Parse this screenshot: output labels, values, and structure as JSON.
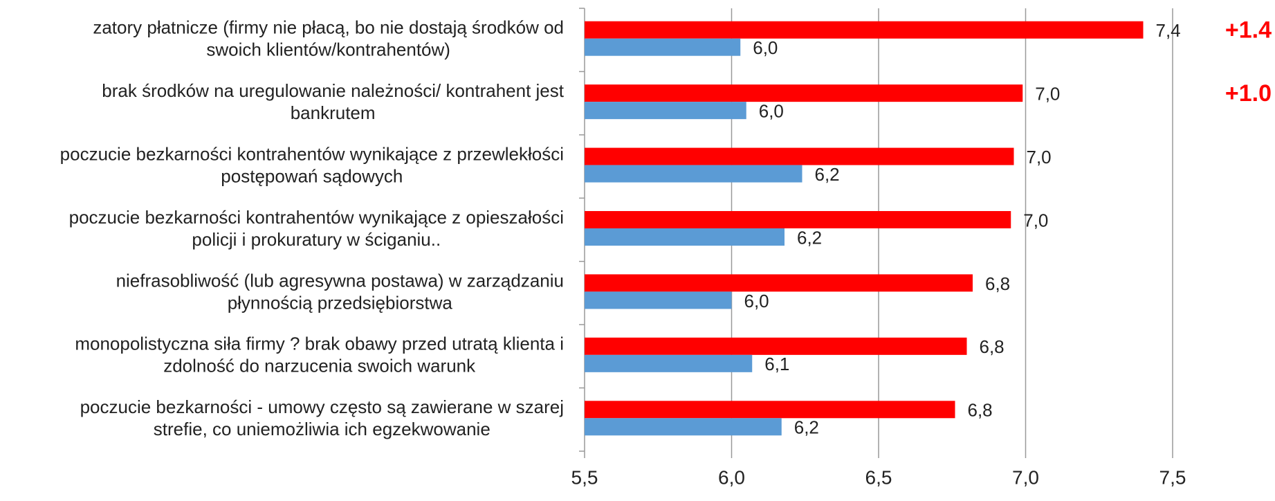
{
  "chart_data": {
    "type": "hbar",
    "categories": [
      [
        "zatory płatnicze (firmy nie płacą, bo nie dostają środków od",
        "swoich klientów/kontrahentów)"
      ],
      [
        "brak środków na uregulowanie należności/ kontrahent jest",
        "bankrutem"
      ],
      [
        "poczucie bezkarności kontrahentów wynikające z przewlekłości",
        "postępowań sądowych"
      ],
      [
        "poczucie bezkarności kontrahentów wynikające z opieszałości",
        "policji i prokuratury w ściganiu.."
      ],
      [
        "niefrasobliwość (lub agresywna postawa) w zarządzaniu",
        "płynnością przedsiębiorstwa"
      ],
      [
        "monopolistyczna siła firmy ? brak obawy przed utratą klienta i",
        "zdolność do narzucenia swoich warunk"
      ],
      [
        "poczucie bezkarności - umowy często są zawierane w szarej",
        "strefie, co uniemożliwia ich egzekwowanie"
      ]
    ],
    "series": [
      {
        "color": "#ff0000",
        "values": [
          7.4,
          6.99,
          6.96,
          6.95,
          6.82,
          6.8,
          6.76
        ],
        "value_labels": [
          "7,4",
          "7,0",
          "7,0",
          "7,0",
          "6,8",
          "6,8",
          "6,8"
        ]
      },
      {
        "color": "#5b9bd5",
        "values": [
          6.03,
          6.05,
          6.24,
          6.18,
          6.0,
          6.07,
          6.17
        ],
        "value_labels": [
          "6,0",
          "6,0",
          "6,2",
          "6,2",
          "6,0",
          "6,1",
          "6,2"
        ]
      }
    ],
    "annotations": [
      {
        "text": "+1.4",
        "category": 0
      },
      {
        "text": "+1.0",
        "category": 1
      }
    ],
    "annotation_color": "#ff0000",
    "xlim": [
      5.5,
      7.5
    ],
    "xticks": [
      {
        "value": 5.5,
        "label": "5,5"
      },
      {
        "value": 6.0,
        "label": "6,0"
      },
      {
        "value": 6.5,
        "label": "6,5"
      },
      {
        "value": 7.0,
        "label": "7,0"
      },
      {
        "value": 7.5,
        "label": "7,5"
      }
    ],
    "grid": true
  }
}
